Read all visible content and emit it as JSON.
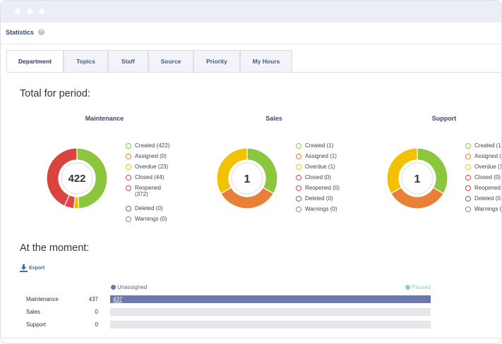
{
  "header": {
    "title": "Statistics",
    "help_icon": "?"
  },
  "tabs": [
    {
      "label": "Department",
      "active": true
    },
    {
      "label": "Topics"
    },
    {
      "label": "Staff"
    },
    {
      "label": "Source"
    },
    {
      "label": "Priority"
    },
    {
      "label": "My Hours"
    }
  ],
  "period": {
    "title": "Total for period:",
    "charts": [
      {
        "name": "Maintenance",
        "total": "422",
        "legend": [
          {
            "label": "Created (422)",
            "color": "#8cc63f"
          },
          {
            "label": "Assigned (0)",
            "color": "#e8803a"
          },
          {
            "label": "Overdue (23)",
            "color": "#f2c200"
          },
          {
            "label": "Closed (44)",
            "color": "#e0444d"
          },
          {
            "label": "Reopened (372)",
            "color": "#d9443f"
          },
          {
            "label": "Deleted (0)",
            "color": "#5c6a80"
          },
          {
            "label": "Warnings (0)",
            "color": "#7a8aa8"
          }
        ]
      },
      {
        "name": "Sales",
        "total": "1",
        "legend": [
          {
            "label": "Created (1)",
            "color": "#8cc63f"
          },
          {
            "label": "Assigned (1)",
            "color": "#e8803a"
          },
          {
            "label": "Overdue (1)",
            "color": "#f2c200"
          },
          {
            "label": "Closed (0)",
            "color": "#e0444d"
          },
          {
            "label": "Reopened (0)",
            "color": "#d9443f"
          },
          {
            "label": "Deleted (0)",
            "color": "#5c6a80"
          },
          {
            "label": "Warnings (0)",
            "color": "#7a8aa8"
          }
        ]
      },
      {
        "name": "Support",
        "total": "1",
        "legend": [
          {
            "label": "Created (1",
            "color": "#8cc63f"
          },
          {
            "label": "Assigned (",
            "color": "#e8803a"
          },
          {
            "label": "Overdue (1",
            "color": "#f2c200"
          },
          {
            "label": "Closed (0)",
            "color": "#e0444d"
          },
          {
            "label": "Reopened",
            "color": "#d9443f"
          },
          {
            "label": "Deleted (0",
            "color": "#5c6a80"
          },
          {
            "label": "Warnings (",
            "color": "#7a8aa8"
          }
        ]
      }
    ]
  },
  "moment": {
    "title": "At the moment:",
    "export_label": "Export",
    "legend": [
      {
        "label": "Unassigned",
        "color": "#6a78ae"
      },
      {
        "label": "Paused",
        "color": "#8fd3b0"
      }
    ],
    "rows": [
      {
        "name": "Maintenance",
        "count": "437",
        "bar_label": "437",
        "fill_fraction": 1.0
      },
      {
        "name": "Sales",
        "count": "0",
        "bar_label": "",
        "fill_fraction": 0
      },
      {
        "name": "Support",
        "count": "0",
        "bar_label": "",
        "fill_fraction": 0
      }
    ]
  },
  "chart_data": [
    {
      "type": "pie",
      "title": "Maintenance",
      "categories": [
        "Created",
        "Assigned",
        "Overdue",
        "Closed",
        "Reopened",
        "Deleted",
        "Warnings"
      ],
      "values": [
        422,
        0,
        23,
        44,
        372,
        0,
        0
      ],
      "colors": [
        "#8cc63f",
        "#e8803a",
        "#f2c200",
        "#e0444d",
        "#d9443f",
        "#5c6a80",
        "#7a8aa8"
      ],
      "center_label": "422"
    },
    {
      "type": "pie",
      "title": "Sales",
      "categories": [
        "Created",
        "Assigned",
        "Overdue",
        "Closed",
        "Reopened",
        "Deleted",
        "Warnings"
      ],
      "values": [
        1,
        1,
        1,
        0,
        0,
        0,
        0
      ],
      "colors": [
        "#8cc63f",
        "#e8803a",
        "#f2c200",
        "#e0444d",
        "#d9443f",
        "#5c6a80",
        "#7a8aa8"
      ],
      "center_label": "1"
    },
    {
      "type": "pie",
      "title": "Support",
      "categories": [
        "Created",
        "Assigned",
        "Overdue",
        "Closed",
        "Reopened",
        "Deleted",
        "Warnings"
      ],
      "values": [
        1,
        1,
        1,
        0,
        0,
        0,
        0
      ],
      "colors": [
        "#8cc63f",
        "#e8803a",
        "#f2c200",
        "#e0444d",
        "#d9443f",
        "#5c6a80",
        "#7a8aa8"
      ],
      "center_label": "1"
    }
  ]
}
